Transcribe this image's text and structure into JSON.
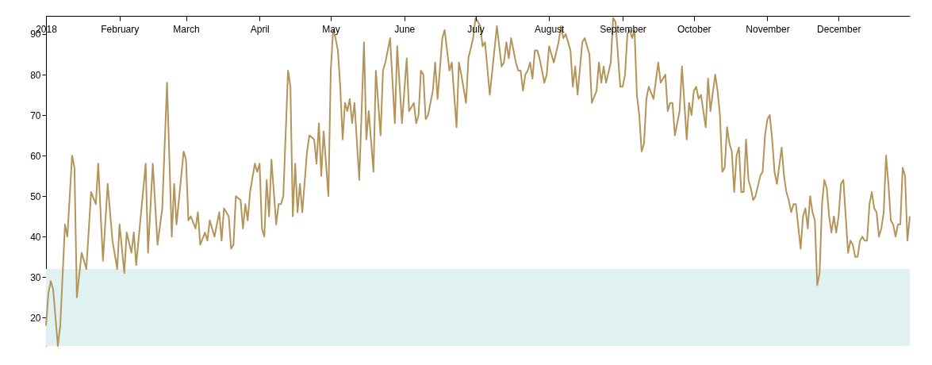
{
  "chart_data": {
    "type": "line",
    "x": [
      "2018-01-01",
      "2018-01-02",
      "2018-01-03",
      "2018-01-04",
      "2018-01-06",
      "2018-01-07",
      "2018-01-09",
      "2018-01-10",
      "2018-01-12",
      "2018-01-13",
      "2018-01-14",
      "2018-01-16",
      "2018-01-18",
      "2018-01-20",
      "2018-01-22",
      "2018-01-23",
      "2018-01-25",
      "2018-01-27",
      "2018-01-29",
      "2018-01-31",
      "2018-02-01",
      "2018-02-03",
      "2018-02-04",
      "2018-02-06",
      "2018-02-07",
      "2018-02-08",
      "2018-02-12",
      "2018-02-13",
      "2018-02-15",
      "2018-02-17",
      "2018-02-19",
      "2018-02-21",
      "2018-02-23",
      "2018-02-24",
      "2018-02-25",
      "2018-02-28",
      "2018-03-01",
      "2018-03-02",
      "2018-03-03",
      "2018-03-05",
      "2018-03-06",
      "2018-03-07",
      "2018-03-09",
      "2018-03-10",
      "2018-03-11",
      "2018-03-13",
      "2018-03-15",
      "2018-03-16",
      "2018-03-17",
      "2018-03-19",
      "2018-03-20",
      "2018-03-21",
      "2018-03-22",
      "2018-03-24",
      "2018-03-25",
      "2018-03-26",
      "2018-03-27",
      "2018-03-28",
      "2018-03-30",
      "2018-03-31",
      "2018-04-01",
      "2018-04-02",
      "2018-04-03",
      "2018-04-04",
      "2018-04-05",
      "2018-04-06",
      "2018-04-08",
      "2018-04-09",
      "2018-04-10",
      "2018-04-11",
      "2018-04-13",
      "2018-04-14",
      "2018-04-15",
      "2018-04-16",
      "2018-04-17",
      "2018-04-18",
      "2018-04-19",
      "2018-04-21",
      "2018-04-22",
      "2018-04-24",
      "2018-04-25",
      "2018-04-26",
      "2018-04-27",
      "2018-04-28",
      "2018-04-30",
      "2018-05-01",
      "2018-05-02",
      "2018-05-03",
      "2018-05-04",
      "2018-05-05",
      "2018-05-06",
      "2018-05-07",
      "2018-05-08",
      "2018-05-09",
      "2018-05-10",
      "2018-05-11",
      "2018-05-13",
      "2018-05-15",
      "2018-05-16",
      "2018-05-17",
      "2018-05-19",
      "2018-05-20",
      "2018-05-22",
      "2018-05-23",
      "2018-05-24",
      "2018-05-26",
      "2018-05-28",
      "2018-05-29",
      "2018-05-31",
      "2018-06-02",
      "2018-06-03",
      "2018-06-05",
      "2018-06-06",
      "2018-06-07",
      "2018-06-08",
      "2018-06-09",
      "2018-06-10",
      "2018-06-11",
      "2018-06-13",
      "2018-06-14",
      "2018-06-15",
      "2018-06-17",
      "2018-06-18",
      "2018-06-20",
      "2018-06-21",
      "2018-06-23",
      "2018-06-24",
      "2018-06-25",
      "2018-06-27",
      "2018-06-28",
      "2018-06-30",
      "2018-07-01",
      "2018-07-03",
      "2018-07-04",
      "2018-07-05",
      "2018-07-07",
      "2018-07-10",
      "2018-07-12",
      "2018-07-13",
      "2018-07-14",
      "2018-07-15",
      "2018-07-16",
      "2018-07-18",
      "2018-07-19",
      "2018-07-20",
      "2018-07-21",
      "2018-07-22",
      "2018-07-23",
      "2018-07-24",
      "2018-07-25",
      "2018-07-26",
      "2018-07-27",
      "2018-07-28",
      "2018-07-30",
      "2018-07-31",
      "2018-08-01",
      "2018-08-03",
      "2018-08-05",
      "2018-08-06",
      "2018-08-07",
      "2018-08-08",
      "2018-08-10",
      "2018-08-11",
      "2018-08-12",
      "2018-08-13",
      "2018-08-15",
      "2018-08-16",
      "2018-08-18",
      "2018-08-19",
      "2018-08-21",
      "2018-08-22",
      "2018-08-23",
      "2018-08-24",
      "2018-08-25",
      "2018-08-27",
      "2018-08-28",
      "2018-08-29",
      "2018-08-31",
      "2018-09-01",
      "2018-09-02",
      "2018-09-03",
      "2018-09-04",
      "2018-09-05",
      "2018-09-06",
      "2018-09-07",
      "2018-09-08",
      "2018-09-09",
      "2018-09-10",
      "2018-09-11",
      "2018-09-12",
      "2018-09-14",
      "2018-09-16",
      "2018-09-17",
      "2018-09-18",
      "2018-09-19",
      "2018-09-20",
      "2018-09-21",
      "2018-09-22",
      "2018-09-23",
      "2018-09-25",
      "2018-09-26",
      "2018-09-28",
      "2018-09-29",
      "2018-09-30",
      "2018-10-01",
      "2018-10-02",
      "2018-10-03",
      "2018-10-04",
      "2018-10-06",
      "2018-10-07",
      "2018-10-08",
      "2018-10-10",
      "2018-10-11",
      "2018-10-12",
      "2018-10-13",
      "2018-10-14",
      "2018-10-15",
      "2018-10-16",
      "2018-10-17",
      "2018-10-18",
      "2018-10-19",
      "2018-10-20",
      "2018-10-21",
      "2018-10-22",
      "2018-10-23",
      "2018-10-24",
      "2018-10-25",
      "2018-10-26",
      "2018-10-27",
      "2018-10-29",
      "2018-10-30",
      "2018-10-31",
      "2018-11-01",
      "2018-11-02",
      "2018-11-03",
      "2018-11-04",
      "2018-11-05",
      "2018-11-07",
      "2018-11-08",
      "2018-11-09",
      "2018-11-10",
      "2018-11-11",
      "2018-11-12",
      "2018-11-13",
      "2018-11-15",
      "2018-11-16",
      "2018-11-17",
      "2018-11-18",
      "2018-11-19",
      "2018-11-20",
      "2018-11-21",
      "2018-11-22",
      "2018-11-23",
      "2018-11-24",
      "2018-11-25",
      "2018-11-26",
      "2018-11-27",
      "2018-11-28",
      "2018-11-29",
      "2018-11-30",
      "2018-12-01",
      "2018-12-02",
      "2018-12-03",
      "2018-12-05",
      "2018-12-06",
      "2018-12-07",
      "2018-12-08",
      "2018-12-09",
      "2018-12-10",
      "2018-12-11",
      "2018-12-12",
      "2018-12-13",
      "2018-12-14",
      "2018-12-15",
      "2018-12-16",
      "2018-12-17",
      "2018-12-18",
      "2018-12-19",
      "2018-12-20",
      "2018-12-21",
      "2018-12-22",
      "2018-12-23",
      "2018-12-24",
      "2018-12-25",
      "2018-12-26",
      "2018-12-27",
      "2018-12-28",
      "2018-12-29",
      "2018-12-30",
      "2018-12-31"
    ],
    "series": [
      {
        "color": "#b39459",
        "values": [
          18,
          26,
          29,
          27,
          13,
          18,
          43,
          40,
          60,
          57,
          25,
          36,
          32,
          51,
          48,
          58,
          34,
          53,
          39,
          32,
          43,
          31,
          41,
          36,
          41,
          33,
          58,
          36,
          58,
          38,
          47,
          78,
          40,
          53,
          43,
          61,
          59,
          44,
          45,
          42,
          46,
          38,
          41,
          39,
          44,
          40,
          46,
          39,
          47,
          45,
          37,
          38,
          50,
          49,
          42,
          48,
          44,
          51,
          58,
          56,
          58,
          42,
          40,
          54,
          45,
          59,
          43,
          48,
          48,
          50,
          81,
          77,
          45,
          58,
          46,
          53,
          46,
          61,
          65,
          64,
          58,
          68,
          55,
          66,
          50,
          81,
          91,
          89,
          86,
          77,
          64,
          73,
          71,
          74,
          68,
          73,
          54,
          88,
          64,
          71,
          56,
          81,
          65,
          81,
          83,
          89,
          68,
          87,
          68,
          84,
          71,
          73,
          68,
          70,
          81,
          80,
          69,
          70,
          76,
          83,
          74,
          89,
          91,
          81,
          83,
          67,
          83,
          80,
          73,
          84,
          89,
          94,
          92,
          87,
          88,
          75,
          92,
          82,
          83,
          88,
          84,
          89,
          83,
          81,
          81,
          76,
          80,
          81,
          83,
          79,
          86,
          86,
          84,
          78,
          80,
          87,
          83,
          88,
          92,
          89,
          90,
          86,
          77,
          82,
          75,
          88,
          89,
          85,
          73,
          76,
          83,
          78,
          82,
          78,
          83,
          94,
          93,
          77,
          77,
          80,
          90,
          91,
          89,
          91,
          75,
          70,
          61,
          63,
          74,
          77,
          74,
          83,
          78,
          79,
          80,
          71,
          73,
          73,
          65,
          71,
          82,
          64,
          73,
          70,
          76,
          77,
          74,
          75,
          67,
          79,
          71,
          80,
          76,
          70,
          56,
          57,
          67,
          63,
          61,
          51,
          60,
          62,
          51,
          51,
          64,
          54,
          52,
          49,
          50,
          55,
          56,
          65,
          69,
          70,
          64,
          56,
          53,
          62,
          55,
          51,
          49,
          46,
          48,
          48,
          37,
          45,
          47,
          42,
          50,
          46,
          44,
          28,
          31,
          48,
          54,
          52,
          45,
          41,
          45,
          41,
          45,
          53,
          54,
          36,
          39,
          38,
          35,
          35,
          39,
          40,
          39,
          39,
          48,
          51,
          47,
          46,
          40,
          42,
          46,
          60,
          53,
          44,
          43,
          40,
          43,
          43,
          57,
          55,
          39,
          45
        ]
      }
    ],
    "xlim": [
      "2018-01-01",
      "2018-12-31"
    ],
    "xticks": [
      {
        "value": "2018-01-01",
        "label": "2018"
      },
      {
        "value": "2018-02-01",
        "label": "February"
      },
      {
        "value": "2018-03-01",
        "label": "March"
      },
      {
        "value": "2018-04-01",
        "label": "April"
      },
      {
        "value": "2018-05-01",
        "label": "May"
      },
      {
        "value": "2018-06-01",
        "label": "June"
      },
      {
        "value": "2018-07-01",
        "label": "July"
      },
      {
        "value": "2018-08-01",
        "label": "August"
      },
      {
        "value": "2018-09-01",
        "label": "September"
      },
      {
        "value": "2018-10-01",
        "label": "October"
      },
      {
        "value": "2018-11-01",
        "label": "November"
      },
      {
        "value": "2018-12-01",
        "label": "December"
      }
    ],
    "ylim": [
      13,
      94.5
    ],
    "yticks": [
      20,
      30,
      40,
      50,
      60,
      70,
      80,
      90
    ],
    "bands": [
      {
        "axis": "y",
        "from": 13,
        "to": 32,
        "color": "#dff2f1"
      }
    ]
  }
}
